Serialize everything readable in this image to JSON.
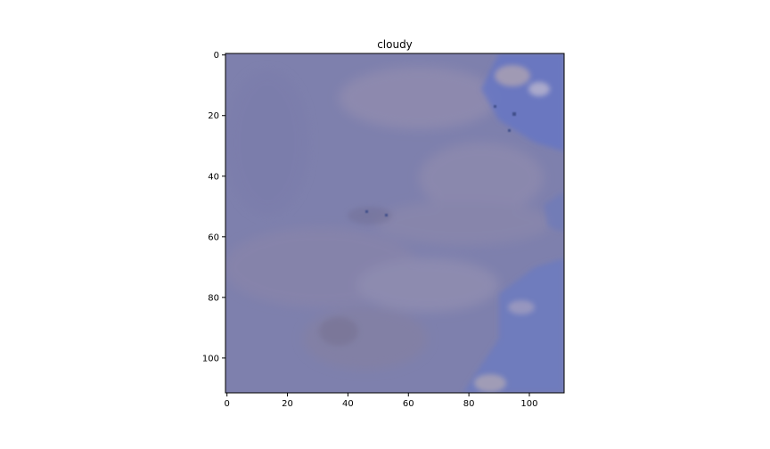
{
  "figure": {
    "title": "cloudy",
    "image_shape": [
      112,
      112
    ],
    "xlim": [
      -0.5,
      111.5
    ],
    "ylim": [
      111.5,
      -0.5
    ],
    "x_ticks": [
      0,
      20,
      40,
      60,
      80,
      100
    ],
    "y_ticks": [
      0,
      20,
      40,
      60,
      80,
      100
    ],
    "x_tick_labels": [
      "0",
      "20",
      "40",
      "60",
      "80",
      "100"
    ],
    "y_tick_labels": [
      "0",
      "20",
      "40",
      "60",
      "80",
      "100"
    ],
    "colors": {
      "base": "#7e80ad",
      "light_haze": "#9a96b4",
      "blue_patch": "#5f6fc2",
      "dark_spots": "#40508a"
    }
  }
}
